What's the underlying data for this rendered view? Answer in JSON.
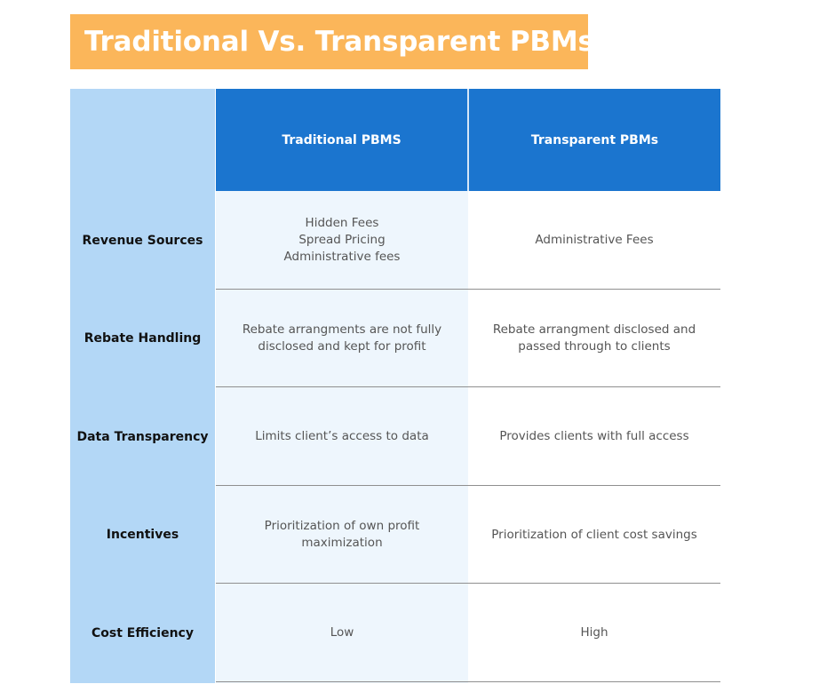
{
  "title": "Traditional Vs. Transparent PBMs",
  "headers": {
    "traditional": "Traditional PBMS",
    "transparent": "Transparent PBMs"
  },
  "rows": [
    {
      "label": "Revenue Sources",
      "traditional": [
        "Hidden Fees",
        "Spread Pricing",
        "Administrative fees"
      ],
      "transparent": [
        "Administrative Fees"
      ]
    },
    {
      "label": "Rebate Handling",
      "traditional": [
        "Rebate arrangments are not fully",
        "disclosed and kept for profit"
      ],
      "transparent": [
        "Rebate arrangment disclosed and",
        "passed through to clients"
      ]
    },
    {
      "label": "Data Transparency",
      "traditional": [
        "Limits client’s access to data"
      ],
      "transparent": [
        "Provides clients with full access"
      ]
    },
    {
      "label": "Incentives",
      "traditional": [
        "Prioritization of own profit",
        "maximization"
      ],
      "transparent": [
        "Prioritization of client cost savings"
      ]
    },
    {
      "label": "Cost Efficiency",
      "traditional": [
        "Low"
      ],
      "transparent": [
        "High"
      ]
    }
  ],
  "colors": {
    "title_bg": "#fbb65a",
    "header_bg": "#1b75cf",
    "label_col_bg": "#b3d7f6",
    "trad_col_bg": "#eef6fd"
  }
}
